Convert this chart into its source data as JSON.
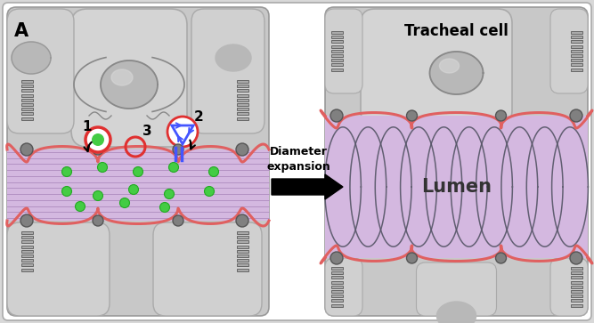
{
  "fig_bg": "#d8d8d8",
  "panel_bg": "#c8c8c8",
  "lumen_fill": "#d4b8e0",
  "lumen_line_color": "#c090cc",
  "lumen_border_color": "#e06060",
  "junction_color": "#e06060",
  "taenidia_color": "#888888",
  "taenidia_edge": "#555555",
  "nucleus_fill": "#b0b0b0",
  "nucleus_edge": "#888888",
  "green_dot_color": "#44cc44",
  "blue_color": "#4455ff",
  "red_ring_color": "#e03030",
  "arrow_color": "#111111",
  "title_left": "A",
  "label_diameter": "Diameter",
  "label_expansion": "expansion",
  "label_tracheal": "Tracheal cell",
  "label_lumen": "Lumen",
  "cell_corner_fill": "#c0c0c0",
  "sep_junction_fill": "#888888"
}
